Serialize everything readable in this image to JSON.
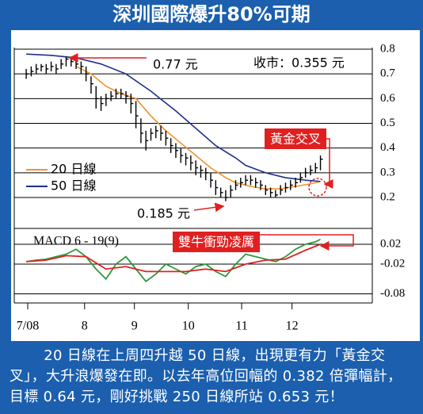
{
  "chart_data": [
    {
      "type": "ohlc",
      "title": "深圳國際爆升80%可期",
      "x": [
        0,
        1,
        2,
        3,
        4,
        5,
        6,
        7,
        8,
        9,
        10,
        11,
        12,
        13,
        14,
        15,
        16,
        17,
        18,
        19,
        20,
        21,
        22,
        23,
        24,
        25,
        26,
        27,
        28,
        29,
        30,
        31,
        32,
        33,
        34,
        35,
        36,
        37,
        38,
        39,
        40,
        41,
        42,
        43,
        44,
        45,
        46,
        47,
        48,
        49,
        50,
        51,
        52,
        53,
        54,
        55,
        56,
        57,
        58,
        59
      ],
      "high": [
        0.72,
        0.73,
        0.74,
        0.74,
        0.74,
        0.75,
        0.74,
        0.76,
        0.77,
        0.77,
        0.76,
        0.75,
        0.73,
        0.69,
        0.65,
        0.61,
        0.62,
        0.63,
        0.64,
        0.64,
        0.63,
        0.62,
        0.59,
        0.52,
        0.47,
        0.48,
        0.49,
        0.49,
        0.47,
        0.44,
        0.42,
        0.4,
        0.38,
        0.37,
        0.35,
        0.33,
        0.32,
        0.3,
        0.27,
        0.24,
        0.23,
        0.25,
        0.27,
        0.28,
        0.29,
        0.29,
        0.28,
        0.27,
        0.25,
        0.24,
        0.23,
        0.25,
        0.26,
        0.27,
        0.28,
        0.3,
        0.32,
        0.33,
        0.34,
        0.37
      ],
      "low": [
        0.68,
        0.69,
        0.7,
        0.71,
        0.7,
        0.71,
        0.7,
        0.72,
        0.73,
        0.73,
        0.72,
        0.7,
        0.67,
        0.62,
        0.56,
        0.55,
        0.57,
        0.59,
        0.6,
        0.6,
        0.58,
        0.54,
        0.48,
        0.42,
        0.39,
        0.43,
        0.44,
        0.43,
        0.41,
        0.38,
        0.36,
        0.34,
        0.33,
        0.31,
        0.29,
        0.28,
        0.27,
        0.24,
        0.21,
        0.2,
        0.185,
        0.2,
        0.23,
        0.24,
        0.25,
        0.25,
        0.24,
        0.23,
        0.21,
        0.2,
        0.2,
        0.21,
        0.22,
        0.23,
        0.24,
        0.26,
        0.28,
        0.29,
        0.3,
        0.31
      ],
      "close": [
        0.7,
        0.71,
        0.72,
        0.73,
        0.72,
        0.73,
        0.72,
        0.74,
        0.76,
        0.75,
        0.74,
        0.73,
        0.7,
        0.66,
        0.6,
        0.58,
        0.6,
        0.61,
        0.62,
        0.62,
        0.61,
        0.58,
        0.53,
        0.46,
        0.43,
        0.46,
        0.47,
        0.46,
        0.44,
        0.41,
        0.39,
        0.37,
        0.36,
        0.34,
        0.32,
        0.31,
        0.3,
        0.27,
        0.24,
        0.22,
        0.2,
        0.23,
        0.25,
        0.26,
        0.27,
        0.27,
        0.26,
        0.25,
        0.23,
        0.22,
        0.21,
        0.23,
        0.24,
        0.25,
        0.26,
        0.28,
        0.3,
        0.31,
        0.32,
        0.355
      ],
      "color": "#000000",
      "series": [
        {
          "name": "20 日線",
          "color": "#f0922e",
          "x": [
            10,
            13,
            16,
            19,
            22,
            25,
            28,
            31,
            34,
            37,
            40,
            42,
            45,
            48,
            51,
            54,
            57,
            59
          ],
          "values": [
            0.73,
            0.7,
            0.65,
            0.62,
            0.6,
            0.53,
            0.47,
            0.42,
            0.37,
            0.32,
            0.28,
            0.26,
            0.245,
            0.235,
            0.235,
            0.245,
            0.255,
            0.265
          ]
        },
        {
          "name": "50 日線",
          "color": "#1f2f8c",
          "x": [
            0,
            5,
            10,
            15,
            20,
            25,
            30,
            34,
            38,
            42,
            44,
            48,
            52,
            56,
            59
          ],
          "values": [
            0.78,
            0.775,
            0.765,
            0.74,
            0.7,
            0.63,
            0.55,
            0.48,
            0.41,
            0.36,
            0.33,
            0.3,
            0.28,
            0.27,
            0.265
          ]
        }
      ],
      "xlim": [
        -2.4,
        69.4
      ],
      "xticks": [
        {
          "value": 0.3,
          "label": "7/08"
        },
        {
          "value": 11.7,
          "label": "8"
        },
        {
          "value": 21.7,
          "label": "9"
        },
        {
          "value": 32.5,
          "label": "10"
        },
        {
          "value": 43.2,
          "label": "11"
        },
        {
          "value": 53.3,
          "label": "12"
        }
      ],
      "ylim": [
        0.15,
        0.85
      ],
      "yticks": [
        0.2,
        0.3,
        0.4,
        0.5,
        0.6,
        0.7,
        0.8
      ],
      "annotations": {
        "peak": "0.77 元",
        "close": "收市：0.355 元",
        "low": "0.185 元",
        "cross": "黃金交叉"
      }
    },
    {
      "type": "line",
      "title": "MACD 6 - 19(9)",
      "series": [
        {
          "color": "#2e9a3c",
          "x": [
            0,
            2,
            4,
            6,
            8,
            10,
            12,
            14,
            16,
            18,
            20,
            22,
            24,
            26,
            28,
            30,
            32,
            34,
            36,
            38,
            40,
            42,
            44,
            46,
            48,
            50,
            52,
            54,
            56,
            58,
            59
          ],
          "values": [
            -0.015,
            -0.012,
            -0.01,
            -0.005,
            0.0,
            0.01,
            -0.005,
            -0.03,
            -0.05,
            -0.02,
            -0.005,
            -0.03,
            -0.055,
            -0.04,
            -0.02,
            -0.03,
            -0.04,
            -0.025,
            -0.02,
            -0.035,
            -0.045,
            -0.02,
            0.0,
            -0.005,
            -0.01,
            -0.015,
            -0.005,
            0.01,
            0.02,
            0.025,
            0.03
          ]
        },
        {
          "color": "#e02020",
          "x": [
            0,
            4,
            8,
            12,
            16,
            20,
            24,
            28,
            32,
            36,
            40,
            44,
            48,
            52,
            56,
            59
          ],
          "values": [
            -0.015,
            -0.012,
            -0.003,
            -0.005,
            -0.03,
            -0.025,
            -0.035,
            -0.035,
            -0.035,
            -0.03,
            -0.035,
            -0.02,
            -0.012,
            -0.01,
            0.008,
            0.02
          ]
        }
      ],
      "ylim": [
        -0.08,
        0.03
      ],
      "yticks": [
        0.02,
        -0.02,
        -0.08
      ],
      "annotations": {
        "signal": "雙牛衝勁凌厲"
      }
    }
  ],
  "caption": "20 日線在上周四升越 50 日線，出現更有力「黃金交叉」，大升浪爆發在即。以去年高位回幅的 0.382 倍彈幅計，目標 0.64 元，剛好挑戰 250 日線所站 0.653 元！"
}
